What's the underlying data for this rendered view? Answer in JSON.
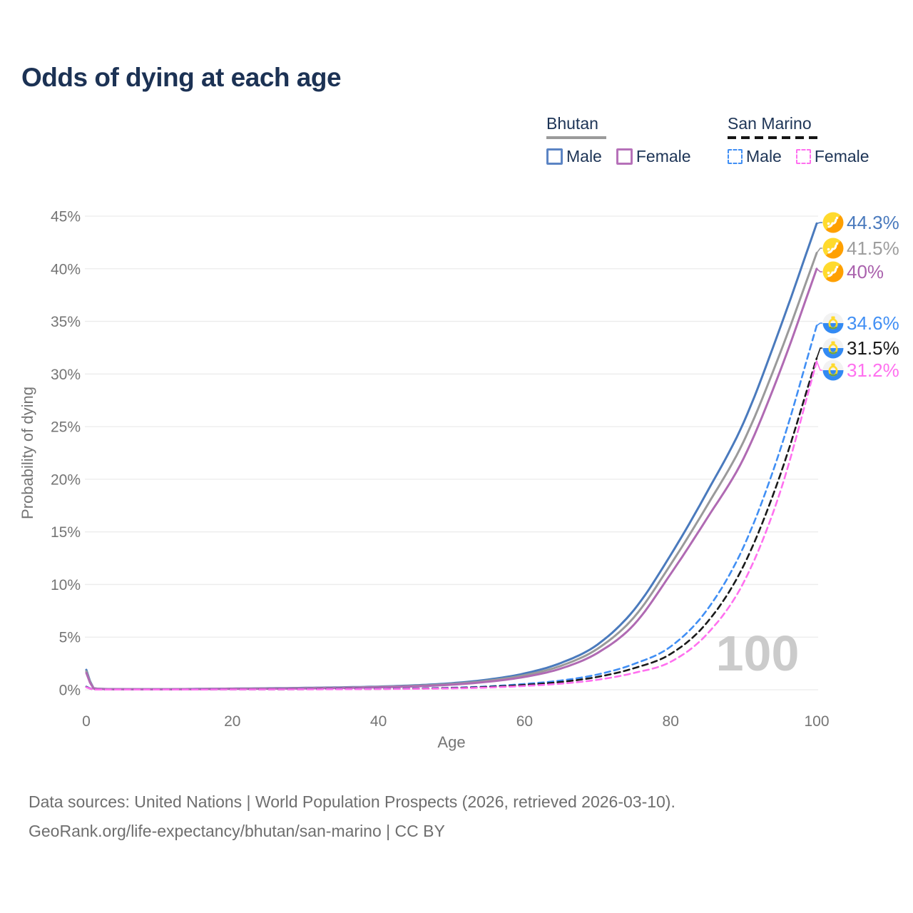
{
  "title": "Odds of dying at each age",
  "legend": {
    "groups": [
      {
        "country": "Bhutan",
        "line_style": "solid",
        "underline_color": "#9a9a9a",
        "items": [
          {
            "label": "Male",
            "color": "#5b84c4"
          },
          {
            "label": "Female",
            "color": "#b671b9"
          }
        ]
      },
      {
        "country": "San Marino",
        "line_style": "dashed",
        "underline_color": "#151515",
        "items": [
          {
            "label": "Male",
            "color": "#418ff4"
          },
          {
            "label": "Female",
            "color": "#ff70ef"
          }
        ]
      }
    ]
  },
  "chart_data": {
    "type": "line",
    "title": "Odds of dying at each age",
    "xlabel": "Age",
    "ylabel": "Probability of dying",
    "xlim": [
      0,
      100
    ],
    "ylim": [
      0,
      45
    ],
    "x_tick_labels": [
      "0",
      "20",
      "40",
      "60",
      "80",
      "100"
    ],
    "x_tick_values": [
      0,
      20,
      40,
      60,
      80,
      100
    ],
    "y_tick_labels": [
      "0%",
      "5%",
      "10%",
      "15%",
      "20%",
      "25%",
      "30%",
      "35%",
      "40%",
      "45%"
    ],
    "y_tick_values": [
      0,
      5,
      10,
      15,
      20,
      25,
      30,
      35,
      40,
      45
    ],
    "grid": true,
    "age_watermark": "100",
    "ages": [
      0,
      1,
      2,
      5,
      10,
      15,
      20,
      25,
      30,
      35,
      40,
      45,
      50,
      55,
      60,
      65,
      70,
      75,
      80,
      85,
      90,
      95,
      100
    ],
    "series": [
      {
        "name": "Bhutan Male",
        "country": "Bhutan",
        "sex": "Male",
        "style": "solid",
        "color": "#4a7abd",
        "flag_icon": "bhutan-flag-icon",
        "end_label": "44.3%",
        "label_color": "#4a7abd",
        "values": [
          1.9,
          0.15,
          0.09,
          0.06,
          0.05,
          0.08,
          0.11,
          0.14,
          0.18,
          0.23,
          0.3,
          0.42,
          0.62,
          0.97,
          1.55,
          2.55,
          4.3,
          7.6,
          12.8,
          18.8,
          25.4,
          34.4,
          44.3
        ]
      },
      {
        "name": "Bhutan Both sexes",
        "country": "Bhutan",
        "sex": "Both",
        "style": "solid",
        "color": "#9a9a9a",
        "flag_icon": "bhutan-flag-icon",
        "end_label": "41.5%",
        "label_color": "#9e9e9e",
        "values": [
          1.75,
          0.14,
          0.08,
          0.05,
          0.05,
          0.07,
          0.1,
          0.12,
          0.16,
          0.2,
          0.27,
          0.37,
          0.55,
          0.86,
          1.38,
          2.28,
          3.9,
          6.9,
          11.9,
          17.5,
          23.6,
          32.0,
          41.5
        ]
      },
      {
        "name": "Bhutan Female",
        "country": "Bhutan",
        "sex": "Female",
        "style": "solid",
        "color": "#b06ab3",
        "flag_icon": "bhutan-flag-icon",
        "end_label": "40%",
        "label_color": "#aa62ad",
        "values": [
          1.6,
          0.12,
          0.07,
          0.05,
          0.04,
          0.06,
          0.08,
          0.1,
          0.13,
          0.17,
          0.23,
          0.32,
          0.48,
          0.76,
          1.22,
          2.02,
          3.5,
          6.2,
          11.0,
          16.3,
          22.0,
          30.3,
          40.0
        ]
      },
      {
        "name": "San Marino Male",
        "country": "San Marino",
        "sex": "Male",
        "style": "dashed",
        "color": "#418ff4",
        "flag_icon": "san-marino-flag-icon",
        "end_label": "34.6%",
        "label_color": "#418ff4",
        "values": [
          0.3,
          0.03,
          0.02,
          0.01,
          0.01,
          0.03,
          0.05,
          0.05,
          0.06,
          0.08,
          0.1,
          0.13,
          0.19,
          0.32,
          0.55,
          0.88,
          1.45,
          2.45,
          4.1,
          7.6,
          13.6,
          22.8,
          34.6
        ]
      },
      {
        "name": "San Marino Both sexes",
        "country": "San Marino",
        "sex": "Both",
        "style": "dashed",
        "color": "#1a1a1a",
        "flag_icon": "san-marino-flag-icon",
        "end_label": "31.5%",
        "label_color": "#1a1a1a",
        "values": [
          0.27,
          0.02,
          0.02,
          0.01,
          0.01,
          0.02,
          0.04,
          0.04,
          0.05,
          0.07,
          0.08,
          0.11,
          0.16,
          0.27,
          0.46,
          0.74,
          1.22,
          2.05,
          3.4,
          6.4,
          11.8,
          20.4,
          31.5
        ]
      },
      {
        "name": "San Marino Female",
        "country": "San Marino",
        "sex": "Female",
        "style": "dashed",
        "color": "#ff70ef",
        "flag_icon": "san-marino-flag-icon",
        "end_label": "31.2%",
        "label_color": "#ff70ef",
        "values": [
          0.24,
          0.02,
          0.01,
          0.01,
          0.01,
          0.02,
          0.03,
          0.03,
          0.04,
          0.05,
          0.07,
          0.09,
          0.13,
          0.21,
          0.36,
          0.58,
          0.95,
          1.6,
          2.65,
          5.3,
          10.2,
          18.8,
          31.2
        ]
      }
    ]
  },
  "footer": {
    "line1": "Data sources: United Nations | World Population Prospects (2026, retrieved 2026-03-10).",
    "line2": "GeoRank.org/life-expectancy/bhutan/san-marino | CC BY"
  }
}
